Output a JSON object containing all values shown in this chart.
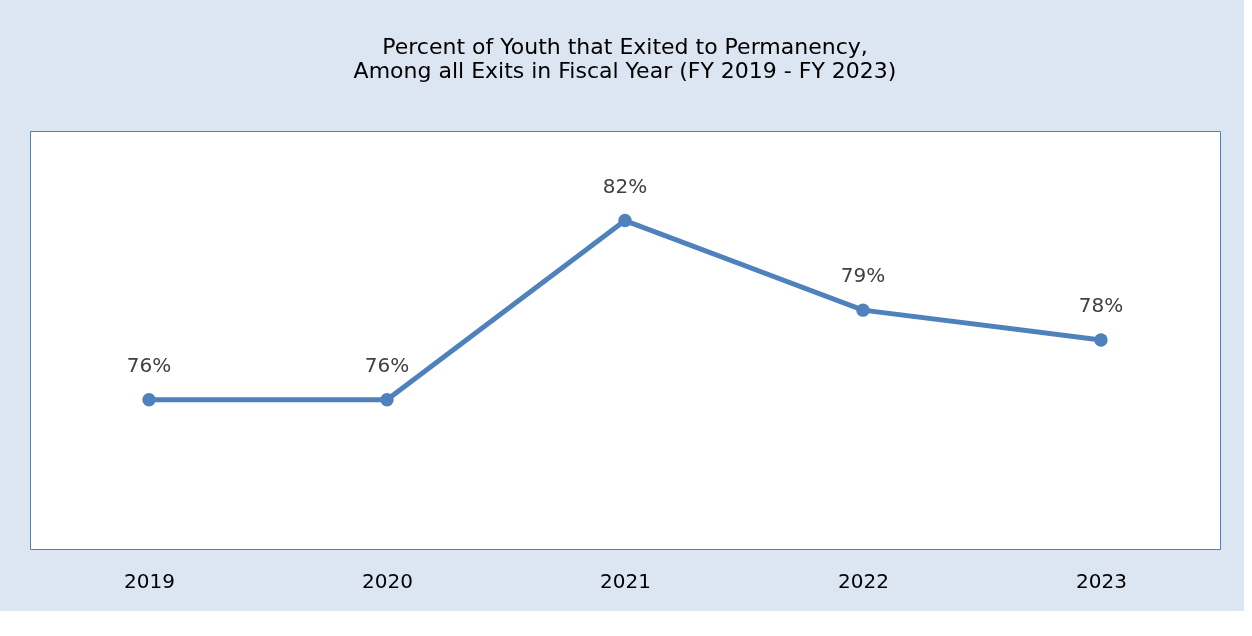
{
  "chart_data": {
    "type": "line",
    "title": [
      "Percent of Youth that Exited to Permanency,",
      "Among all Exits in Fiscal Year (FY 2019 - FY 2023)"
    ],
    "categories": [
      "2019",
      "2020",
      "2021",
      "2022",
      "2023"
    ],
    "series": [
      {
        "color": "#4f81bd",
        "values": [
          76,
          76,
          82,
          79,
          78
        ],
        "value_labels": [
          "76%",
          "76%",
          "82%",
          "79%",
          "78%"
        ]
      }
    ],
    "ylim": [
      71,
      85
    ],
    "tick_labels": "x",
    "grid": false,
    "legend": false,
    "marker": "circle",
    "line_style": "solid"
  }
}
